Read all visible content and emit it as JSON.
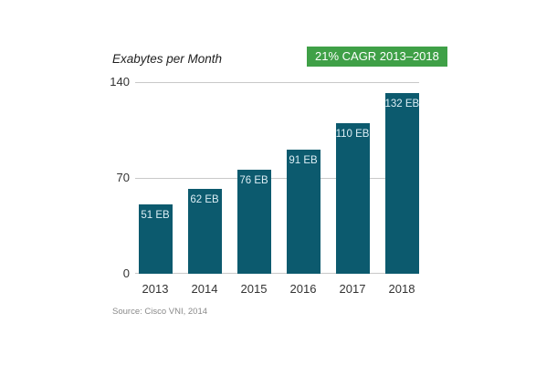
{
  "chart": {
    "title": "Exabytes per Month",
    "badge": "21% CAGR 2013–2018",
    "source": "Source: Cisco VNI, 2014"
  },
  "chart_data": {
    "type": "bar",
    "title": "Exabytes per Month",
    "categories": [
      "2013",
      "2014",
      "2015",
      "2016",
      "2017",
      "2018"
    ],
    "values": [
      51,
      62,
      76,
      91,
      110,
      132
    ],
    "bar_labels": [
      "51 EB",
      "62 EB",
      "76 EB",
      "91 EB",
      "110 EB",
      "132 EB"
    ],
    "xlabel": "",
    "ylabel": "Exabytes per Month",
    "ylim": [
      0,
      140
    ],
    "yticks": [
      0,
      70,
      140
    ],
    "grid": "horizontal",
    "legend": "none",
    "annotation": "21% CAGR 2013–2018",
    "source": "Source: Cisco VNI, 2014",
    "colors": {
      "bar": "#0C5A6E",
      "bar_label": "#DCEEF5",
      "badge_bg": "#3FA047",
      "badge_text": "#FFFFFF",
      "gridline": "#C9C9C9",
      "axis_text": "#333333",
      "source_text": "#8A8A8A"
    }
  }
}
